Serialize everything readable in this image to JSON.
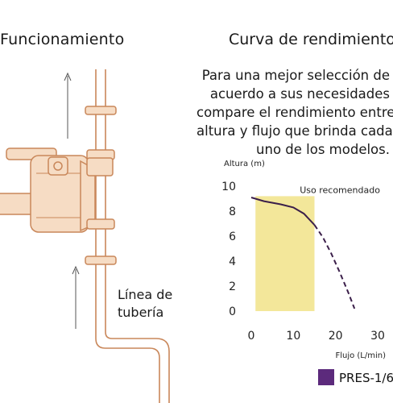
{
  "left": {
    "title": "Funcionamiento",
    "pipe_label": [
      "Línea de",
      "tubería"
    ]
  },
  "right": {
    "title": "Curva de rendimiento",
    "description": [
      "Para una mejor selección de",
      "acuerdo a sus necesidades",
      "compare el rendimiento entre",
      "altura y flujo que brinda cada",
      "uno de los modelos."
    ]
  },
  "colors": {
    "pipe": "#c9875a",
    "pump_fill": "#f6dcc4",
    "recommended_zone": "#f3e79a",
    "curve": "#3b1f4a",
    "legend_swatch": "#5c2a7c",
    "arrow": "#555555"
  },
  "chart_data": {
    "type": "line",
    "title": "Curva de rendimiento",
    "xlabel": "Flujo (L/min)",
    "ylabel": "Altura (m)",
    "x_ticks": [
      0,
      10,
      20,
      30
    ],
    "y_ticks": [
      0,
      2,
      4,
      6,
      8,
      10
    ],
    "xlim": [
      0,
      30
    ],
    "ylim": [
      0,
      10
    ],
    "grid": false,
    "legend_position": "bottom-right",
    "annotation": {
      "text": "Uso recomendado",
      "x_range": [
        1,
        15
      ],
      "y_range": [
        0,
        9.2
      ]
    },
    "series": [
      {
        "name": "PRES-1/6",
        "solid": [
          [
            0,
            9.1
          ],
          [
            3,
            8.8
          ],
          [
            7,
            8.55
          ],
          [
            10,
            8.3
          ],
          [
            12.5,
            7.8
          ],
          [
            15,
            6.9
          ]
        ],
        "dashed": [
          [
            15,
            6.9
          ],
          [
            17,
            5.9
          ],
          [
            19,
            4.6
          ],
          [
            21,
            3.1
          ],
          [
            23,
            1.5
          ],
          [
            24.5,
            0.2
          ]
        ]
      }
    ]
  }
}
